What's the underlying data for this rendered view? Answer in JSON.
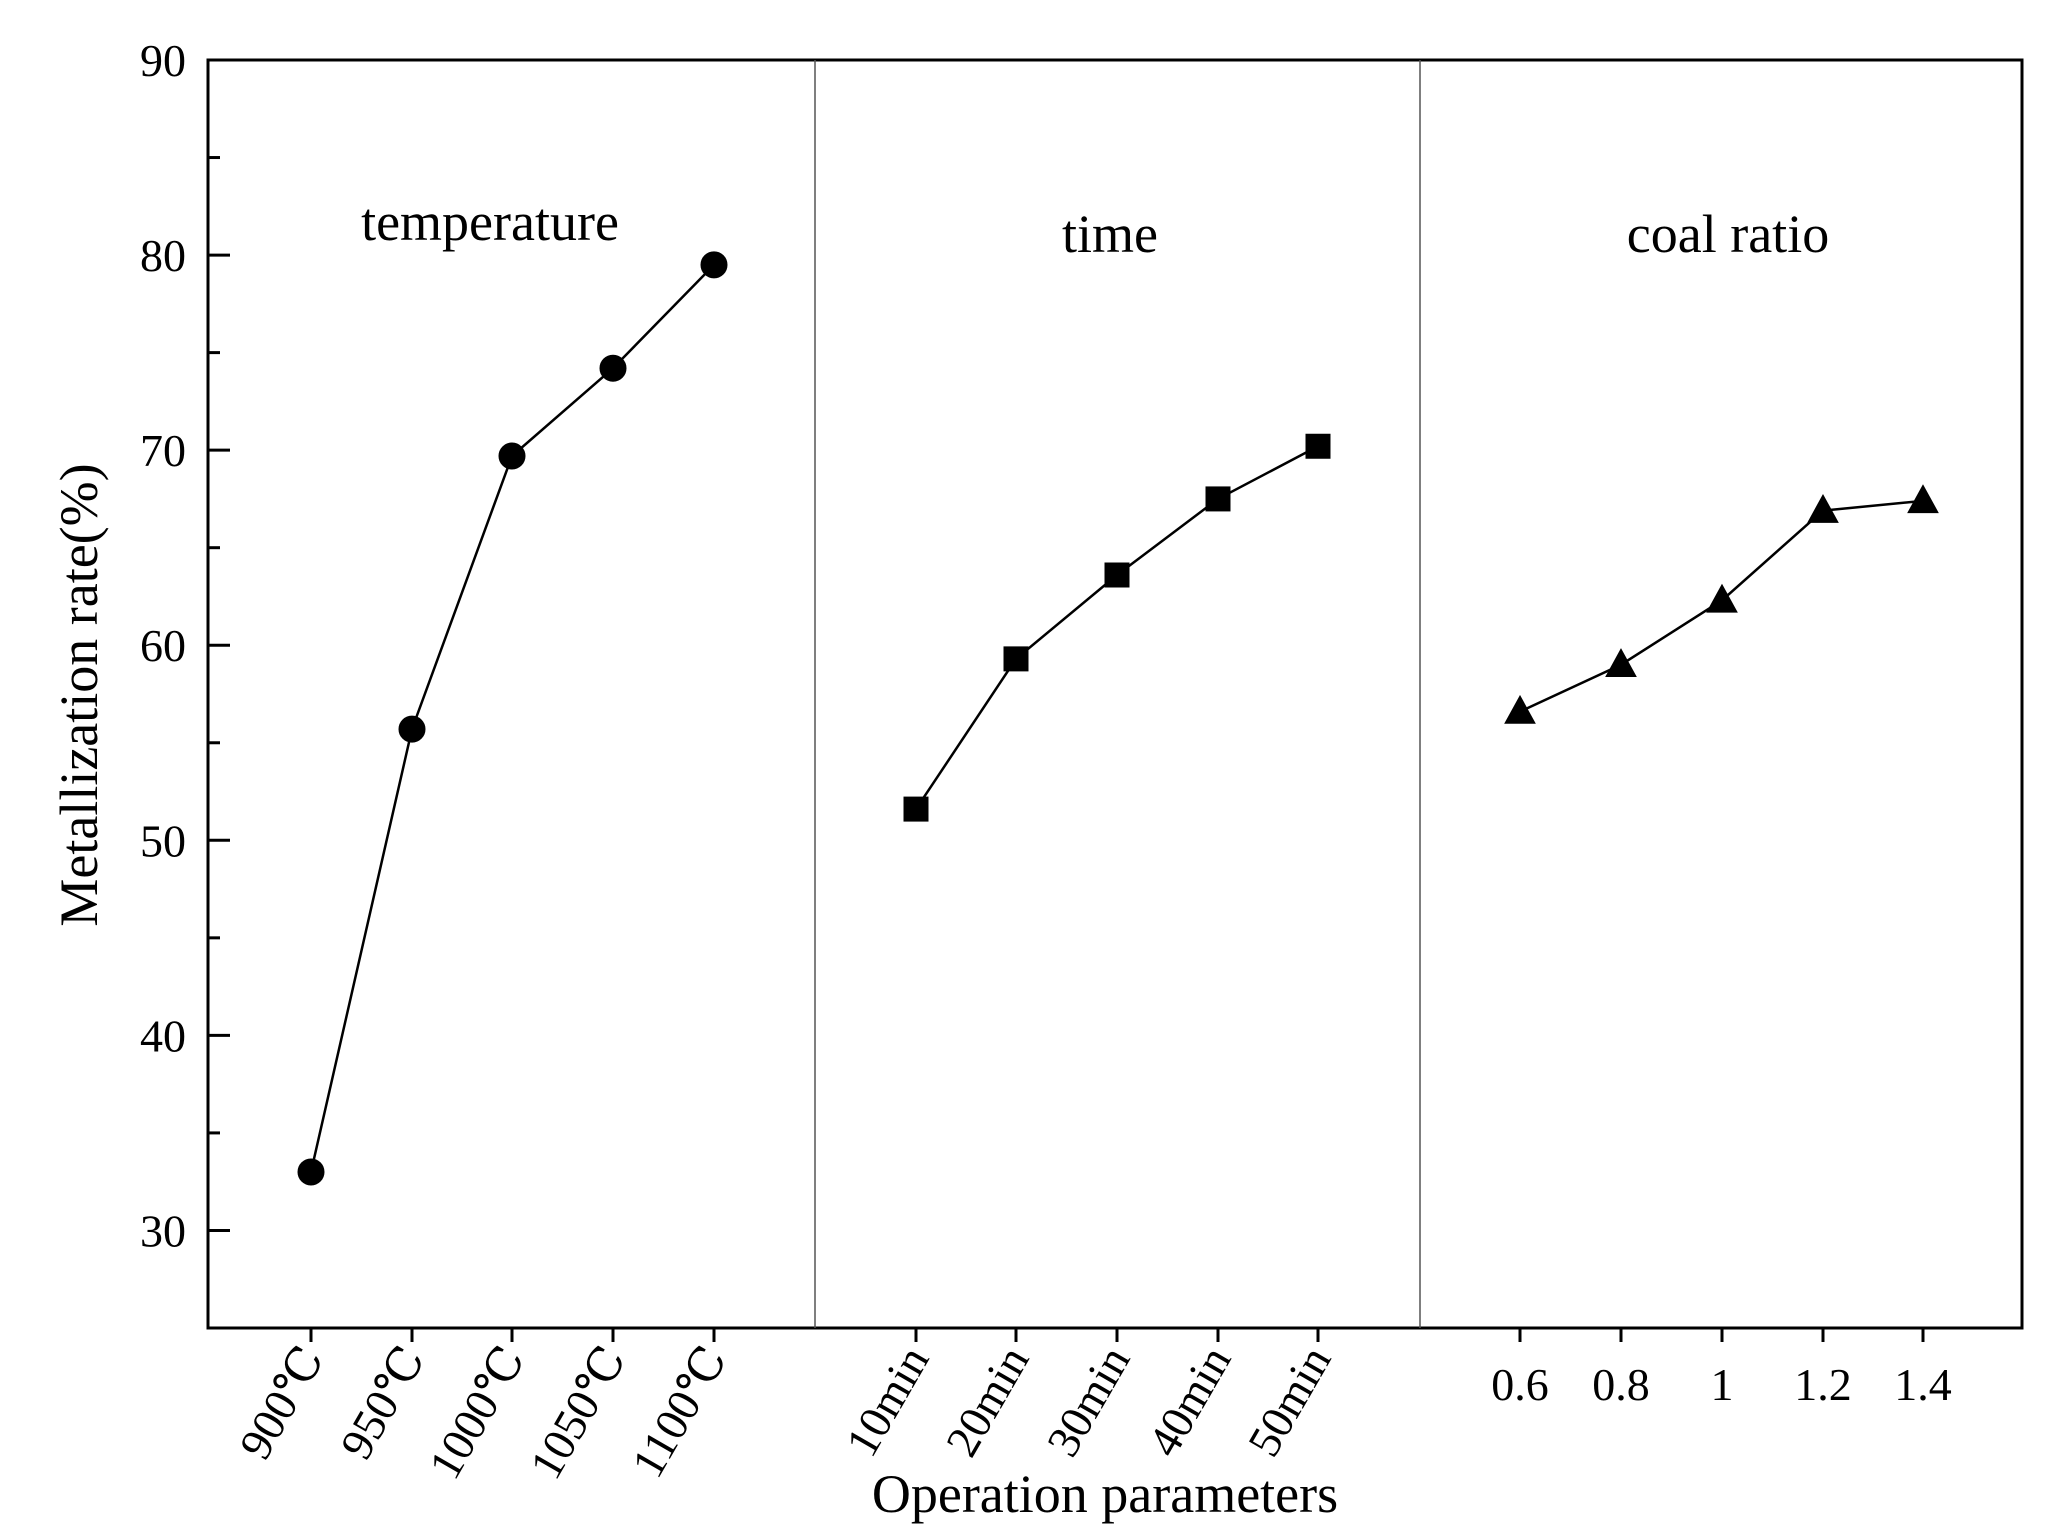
{
  "chart_data": {
    "type": "line",
    "xlabel": "Operation parameters",
    "ylabel": "Metallization rate(%)",
    "ylim": [
      25,
      90
    ],
    "yticks": [
      30,
      40,
      50,
      60,
      70,
      80,
      90
    ],
    "grid": false,
    "legend": "none",
    "series": [
      {
        "name": "temperature",
        "marker": "circle",
        "categories": [
          "900℃",
          "950℃",
          "1000℃",
          "1050℃",
          "1100℃"
        ],
        "values": [
          33.0,
          55.7,
          69.7,
          74.2,
          79.5
        ]
      },
      {
        "name": "time",
        "marker": "square",
        "categories": [
          "10min",
          "20min",
          "30min",
          "40min",
          "50min"
        ],
        "values": [
          51.6,
          59.3,
          63.6,
          67.5,
          70.2
        ]
      },
      {
        "name": "coal ratio",
        "marker": "triangle",
        "categories": [
          "0.6",
          "0.8",
          "1",
          "1.2",
          "1.4"
        ],
        "values": [
          56.6,
          59.0,
          62.3,
          66.9,
          67.4
        ]
      }
    ]
  }
}
